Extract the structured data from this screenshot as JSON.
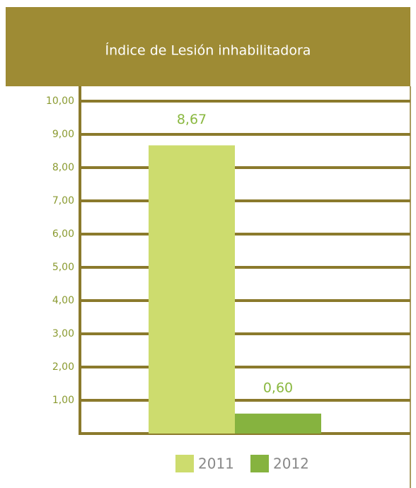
{
  "chart_data": {
    "type": "bar",
    "title": "Índice de Lesión inhabilitadora",
    "series": [
      {
        "name": "2011",
        "color": "#cddc6e",
        "values": [
          8.67
        ],
        "value_labels": [
          "8,67"
        ]
      },
      {
        "name": "2012",
        "color": "#86b33f",
        "values": [
          0.6
        ],
        "value_labels": [
          "0,60"
        ]
      }
    ],
    "ylim": [
      0,
      10
    ],
    "yticks": [
      {
        "value": 1,
        "label": "1,00"
      },
      {
        "value": 2,
        "label": "2,00"
      },
      {
        "value": 3,
        "label": "3,00"
      },
      {
        "value": 4,
        "label": "4,00"
      },
      {
        "value": 5,
        "label": "5,00"
      },
      {
        "value": 6,
        "label": "6,00"
      },
      {
        "value": 7,
        "label": "7,00"
      },
      {
        "value": 8,
        "label": "8,00"
      },
      {
        "value": 9,
        "label": "9,00"
      },
      {
        "value": 10,
        "label": "10,00"
      }
    ],
    "grid": true
  }
}
